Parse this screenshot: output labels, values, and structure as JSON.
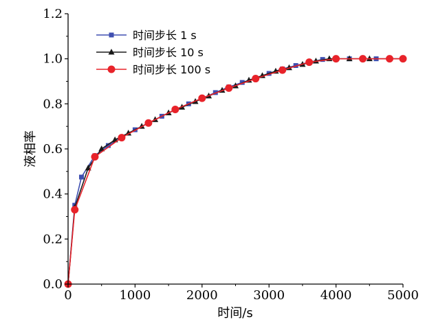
{
  "chart_data": {
    "type": "line",
    "xlabel": "时间/s",
    "ylabel": "液相率",
    "xlim": [
      0,
      5000
    ],
    "ylim": [
      0.0,
      1.2
    ],
    "xticks": [
      "0",
      "1000",
      "2000",
      "3000",
      "4000",
      "5000"
    ],
    "yticks": [
      "0.0",
      "0.2",
      "0.4",
      "0.6",
      "0.8",
      "1.0",
      "1.2"
    ],
    "grid": false,
    "legend_position": "top-left",
    "series": [
      {
        "name": "时间步长 1 s",
        "color": "#3f4fb0",
        "marker": "square",
        "x": [
          0,
          100,
          200,
          400,
          600,
          800,
          1000,
          1200,
          1400,
          1600,
          1800,
          2000,
          2200,
          2400,
          2600,
          2800,
          3000,
          3200,
          3400,
          3600,
          3800,
          4000,
          4200,
          4400,
          4600,
          4800,
          5000
        ],
        "y": [
          0.0,
          0.35,
          0.475,
          0.57,
          0.615,
          0.65,
          0.685,
          0.715,
          0.745,
          0.775,
          0.8,
          0.825,
          0.85,
          0.875,
          0.895,
          0.915,
          0.935,
          0.955,
          0.97,
          0.985,
          0.997,
          1.0,
          1.0,
          1.0,
          1.0,
          1.0,
          1.0
        ]
      },
      {
        "name": "时间步长 10 s",
        "color": "#1a1a1a",
        "marker": "triangle",
        "x": [
          0,
          100,
          300,
          500,
          700,
          900,
          1100,
          1300,
          1500,
          1700,
          1900,
          2100,
          2300,
          2500,
          2700,
          2900,
          3100,
          3300,
          3500,
          3700,
          3900,
          4200,
          4500,
          5000
        ],
        "y": [
          0.0,
          0.34,
          0.515,
          0.6,
          0.64,
          0.67,
          0.7,
          0.73,
          0.76,
          0.785,
          0.81,
          0.835,
          0.86,
          0.88,
          0.905,
          0.925,
          0.945,
          0.96,
          0.975,
          0.99,
          1.0,
          1.0,
          1.0,
          1.0
        ]
      },
      {
        "name": "时间步长 100 s",
        "color": "#e8232a",
        "marker": "circle",
        "x": [
          0,
          100,
          400,
          800,
          1200,
          1600,
          2000,
          2400,
          2800,
          3200,
          3600,
          4000,
          4400,
          4800,
          5000
        ],
        "y": [
          0.0,
          0.33,
          0.565,
          0.65,
          0.715,
          0.775,
          0.825,
          0.87,
          0.912,
          0.95,
          0.985,
          1.0,
          1.0,
          1.0,
          1.0
        ]
      }
    ]
  }
}
